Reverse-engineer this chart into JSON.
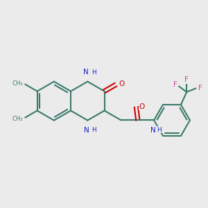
{
  "bg_color": "#ebebeb",
  "bond_color": "#3a7a6a",
  "n_color": "#1a1acc",
  "o_color": "#cc0000",
  "f_color": "#cc44aa",
  "lw": 1.5,
  "fs": 7.5,
  "figsize": [
    3.0,
    3.0
  ],
  "dpi": 100,
  "xlim": [
    0,
    10
  ],
  "ylim": [
    0,
    10
  ]
}
